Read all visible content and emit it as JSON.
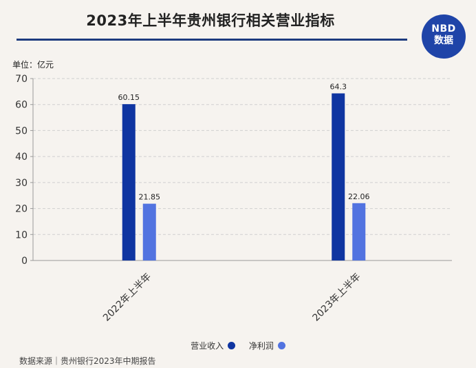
{
  "header": {
    "title": "2023年上半年贵州银行相关营业指标",
    "logo_line1": "NBD",
    "logo_line2": "数据"
  },
  "unit_label": "单位：亿元",
  "source": "数据来源｜贵州银行2023年中期报告",
  "chart_data": {
    "type": "bar",
    "title": "2023年上半年贵州银行相关营业指标",
    "categories": [
      "2022年上半年",
      "2023年上半年"
    ],
    "series": [
      {
        "name": "营业收入",
        "values": [
          60.15,
          64.3
        ],
        "labels": [
          "60.15",
          "64.3"
        ],
        "color": "#0f35a1"
      },
      {
        "name": "净利润",
        "values": [
          21.85,
          22.06
        ],
        "labels": [
          "21.85",
          "22.06"
        ],
        "color": "#5273e0"
      }
    ],
    "ylim": [
      0,
      70
    ],
    "yticks": [
      "0",
      "10",
      "20",
      "30",
      "40",
      "50",
      "60",
      "70"
    ],
    "ylabel": "单位：亿元",
    "grid": true,
    "legend_position": "bottom"
  }
}
